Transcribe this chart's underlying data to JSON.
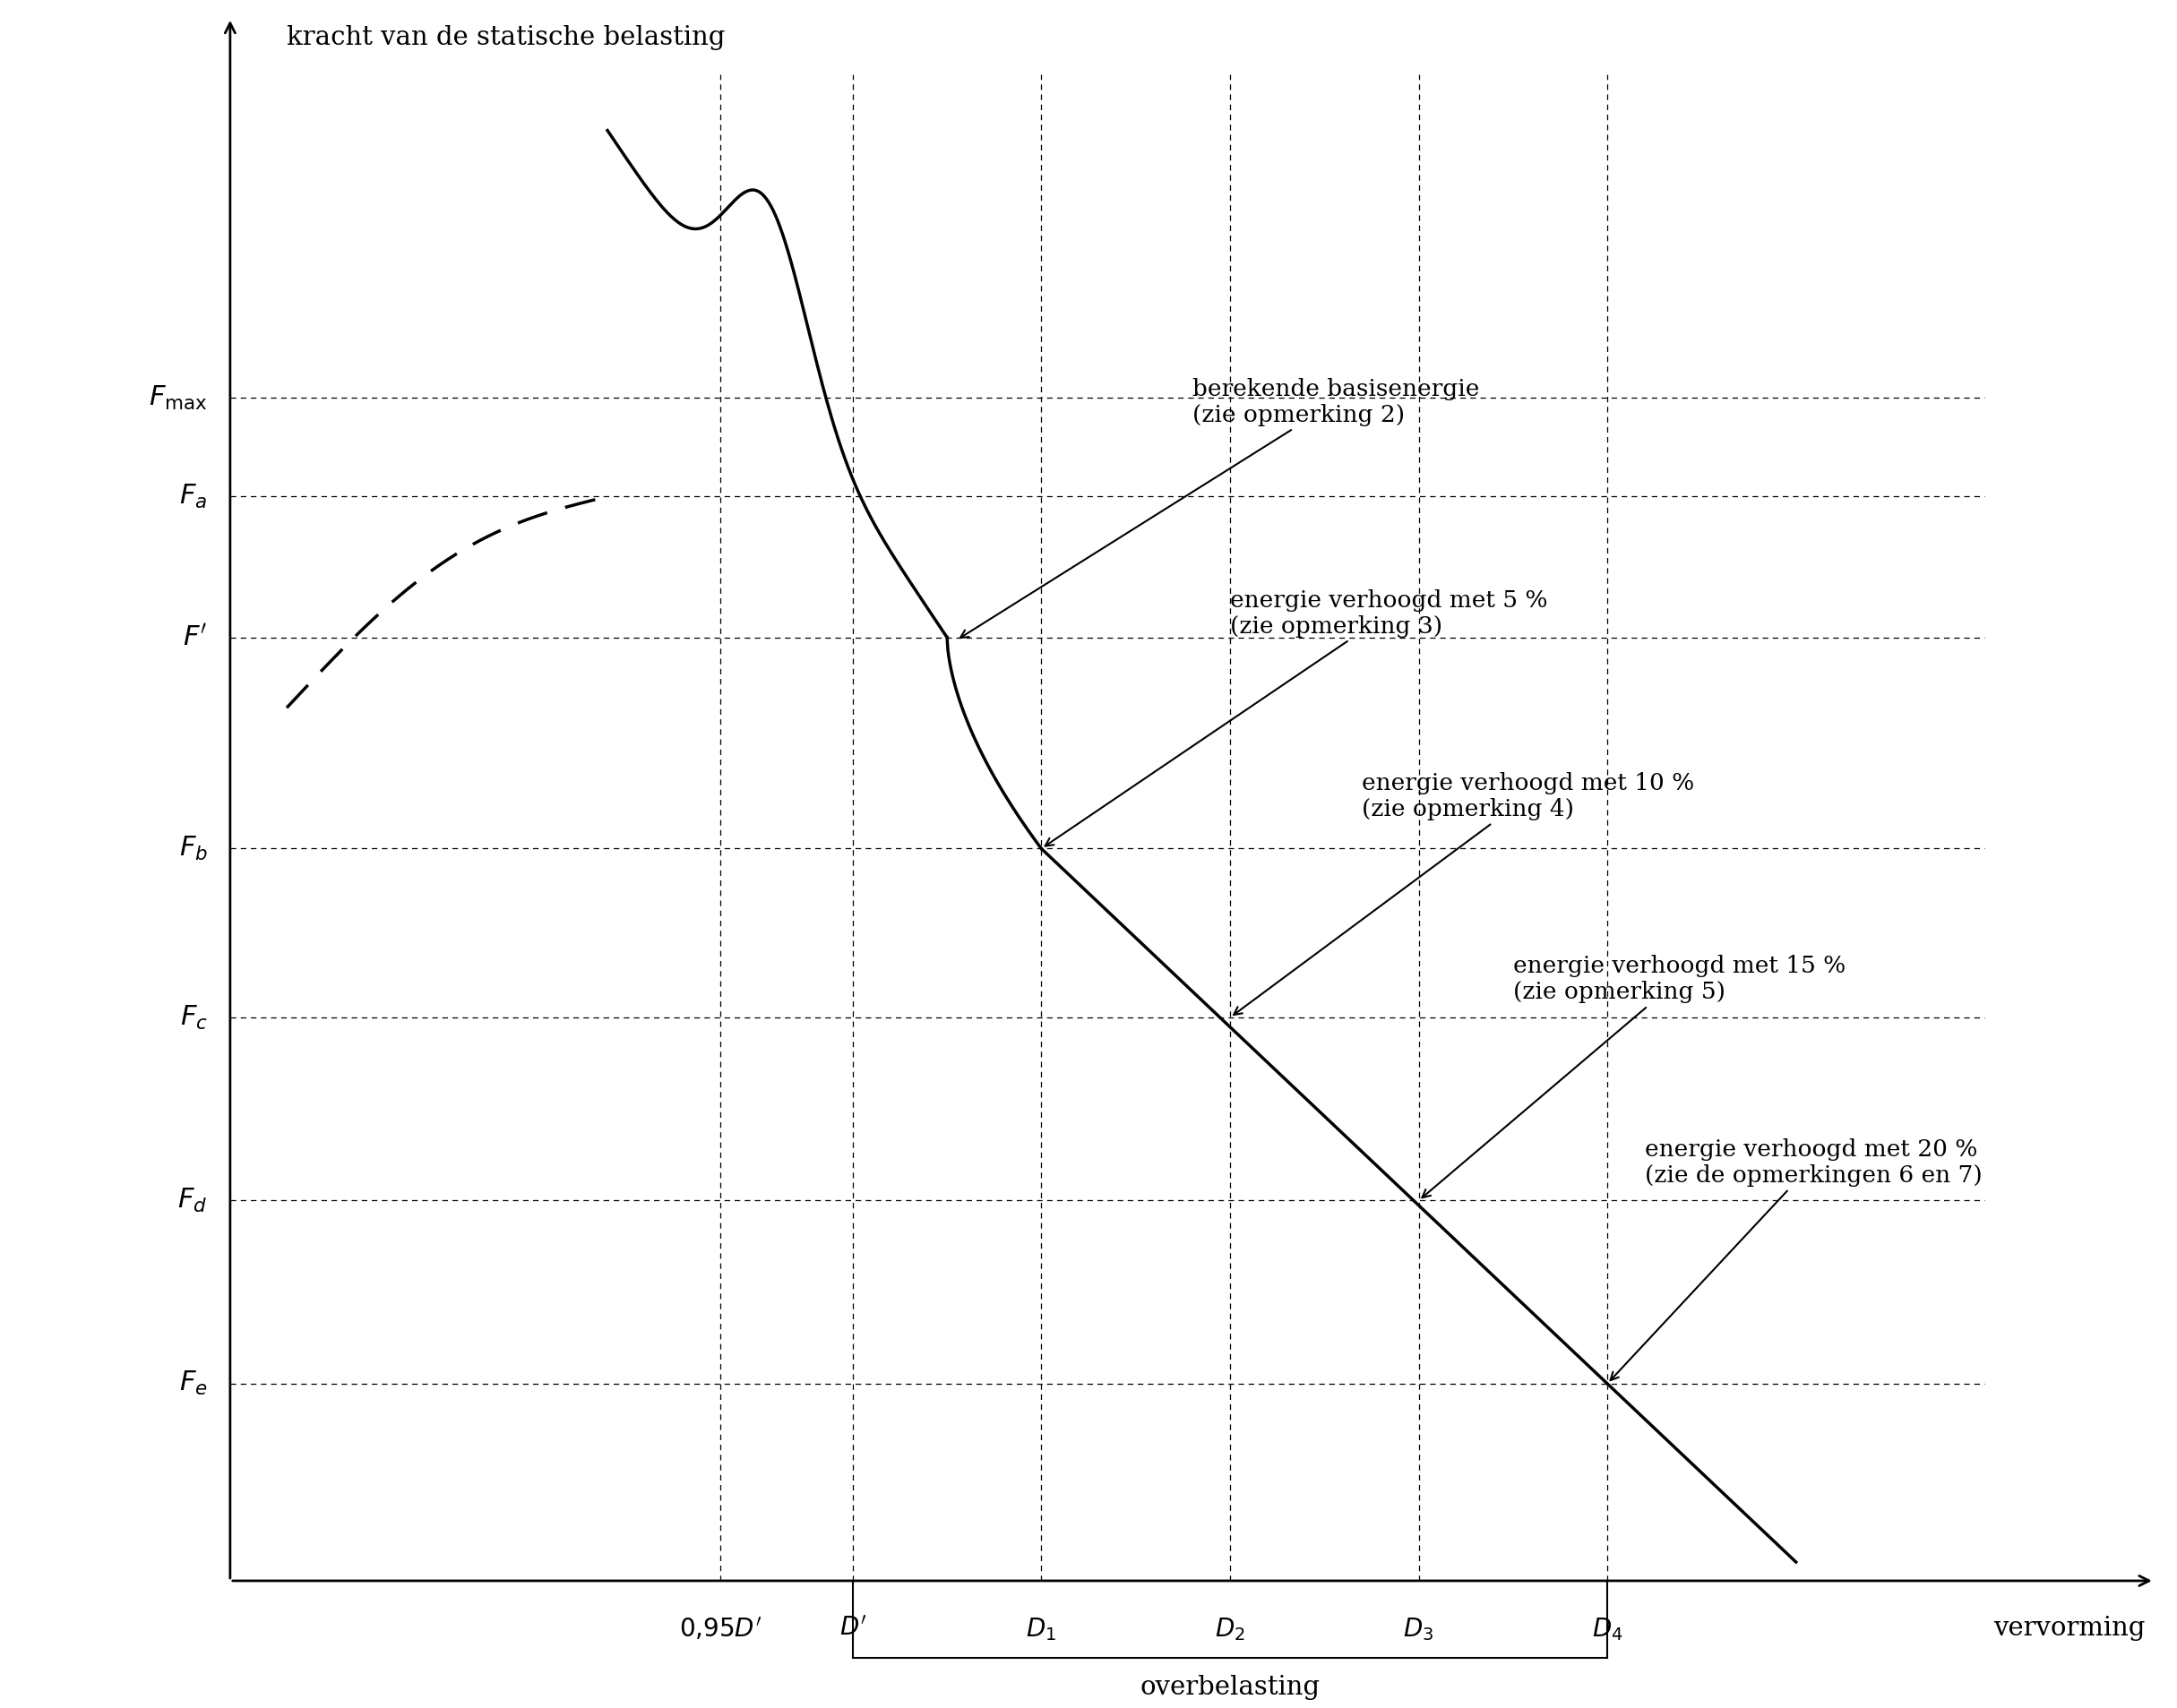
{
  "title_y": "kracht van de statische belasting",
  "title_x": "vervorming",
  "label_overbelasting": "overbelasting",
  "y_labels_tex": [
    "$F_{\\mathrm{max}}$",
    "$F_a$",
    "$F'$",
    "$F_b$",
    "$F_c$",
    "$F_d$",
    "$F_e$"
  ],
  "y_values": [
    9.2,
    8.5,
    7.5,
    6.0,
    4.8,
    3.5,
    2.2
  ],
  "x_labels_tex": [
    "$0{,}95D'$",
    "$D'$",
    "$D_1$",
    "$D_2$",
    "$D_3$",
    "$D_4$"
  ],
  "x_values": [
    3.8,
    4.5,
    5.5,
    6.5,
    7.5,
    8.5
  ],
  "background_color": "#ffffff",
  "fontsize_labels": 22,
  "fontsize_axis_title": 21,
  "fontsize_tick": 20,
  "fontsize_annot": 19
}
